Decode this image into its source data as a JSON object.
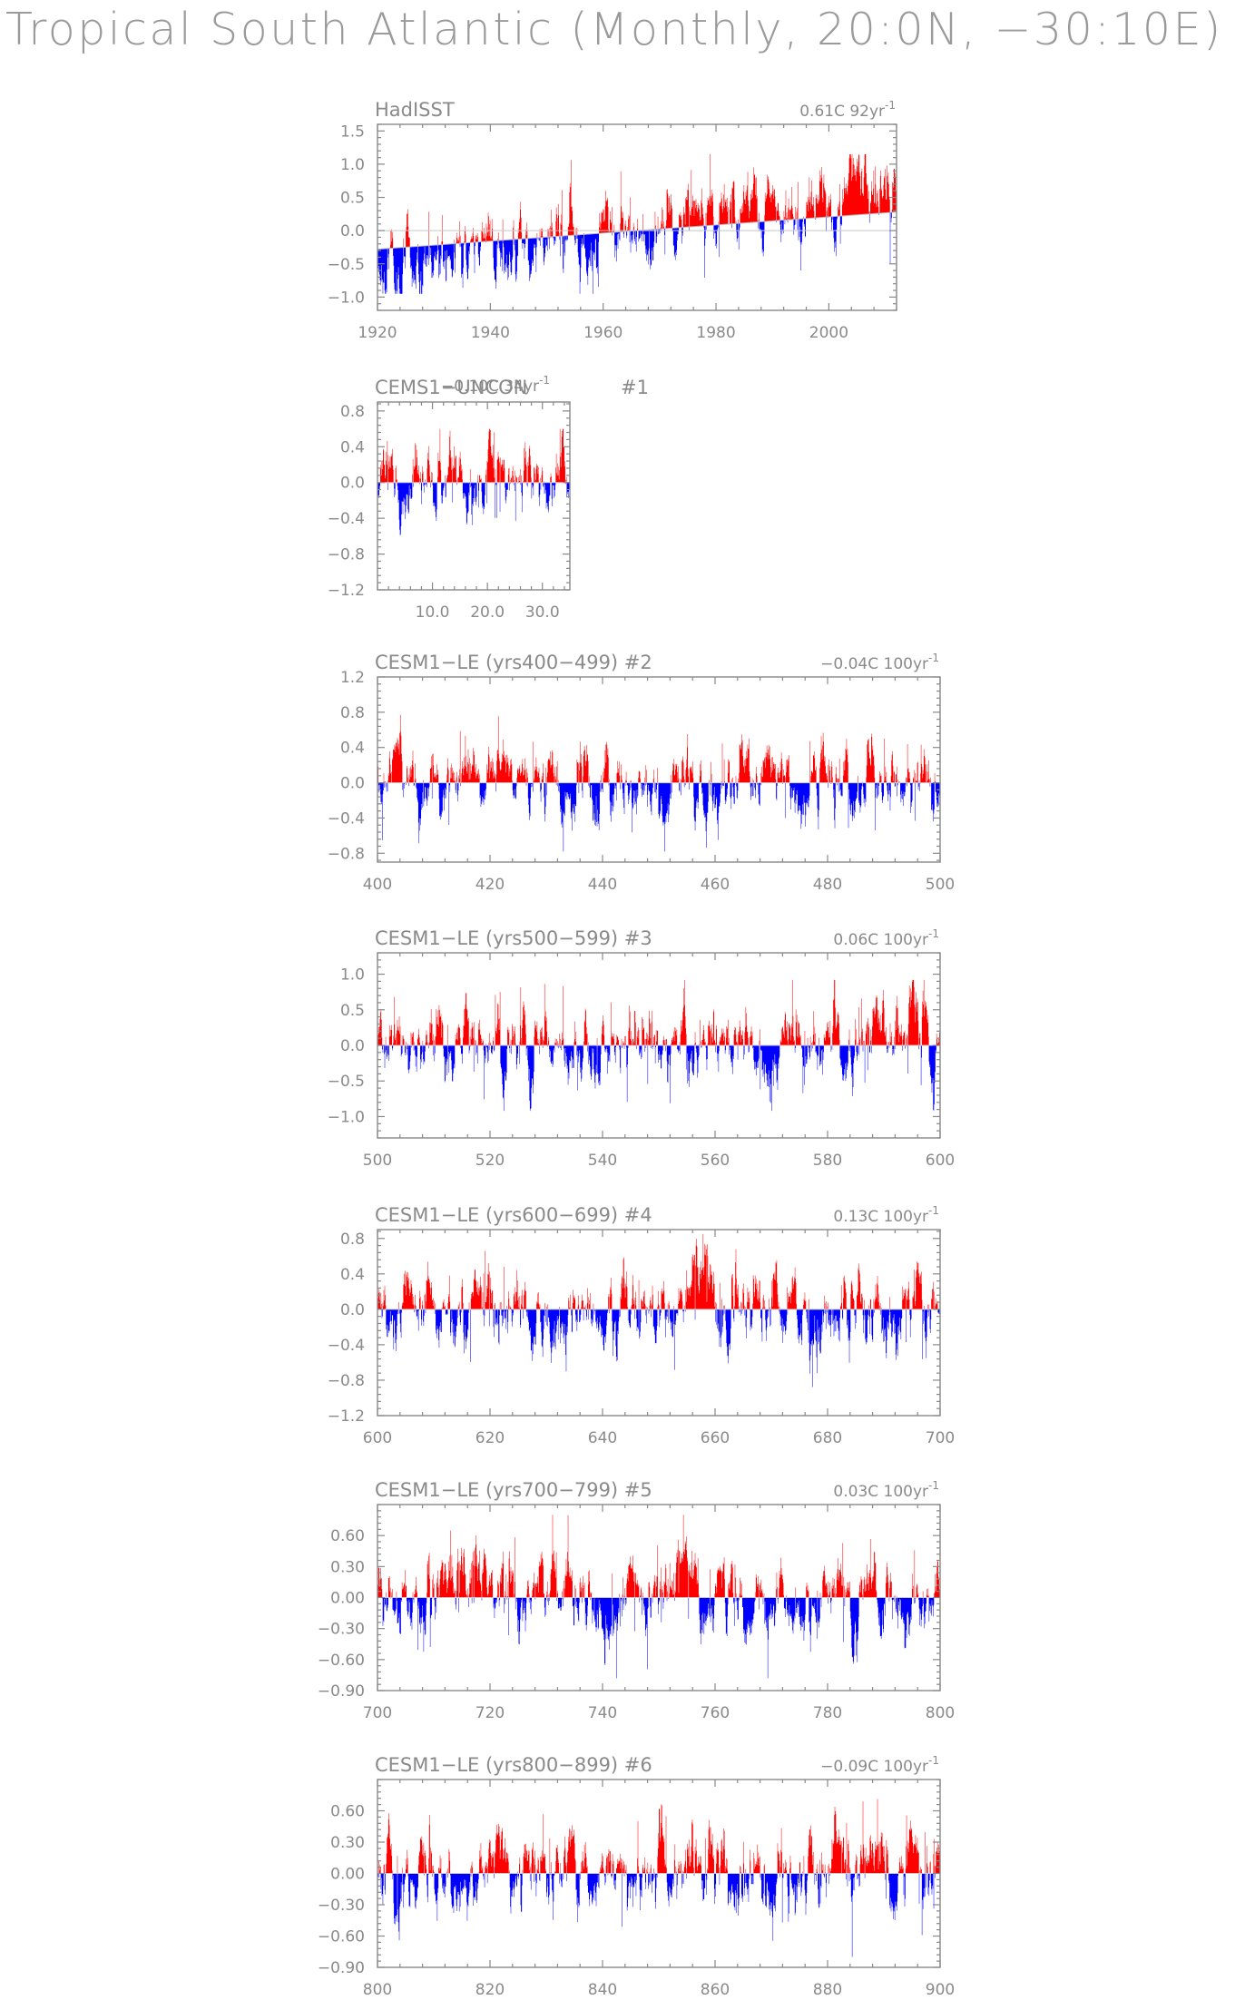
{
  "title": "Tropical South Atlantic (Monthly, 20:0N, −30:10E)",
  "colors": {
    "positive": "#ff0000",
    "negative": "#0000ff",
    "axis": "#888888",
    "text": "#8a8a8a"
  },
  "chart_data": [
    {
      "type": "bar",
      "title": "HadISST",
      "trend_text": "0.61C  92yr",
      "trend_unit_sup": "-1",
      "xlim": [
        1920,
        2012
      ],
      "ylim": [
        -1.2,
        1.6
      ],
      "xticks": [
        1920,
        1940,
        1960,
        1980,
        2000
      ],
      "yticks": [
        -1.0,
        -0.5,
        0.0,
        0.5,
        1.0,
        1.5
      ],
      "ytick_labels": [
        "−1.0",
        "−0.5",
        "0.0",
        "0.5",
        "1.0",
        "1.5"
      ],
      "xtick_labels": [
        "1920",
        "1940",
        "1960",
        "1980",
        "2000"
      ],
      "trend": {
        "start": -0.28,
        "end": 0.28
      },
      "series": [
        {
          "values": {
            "seed": 11,
            "amp": 0.3,
            "max": 1.15,
            "min": -0.95,
            "trend_start": -0.45,
            "trend_end": 0.55
          }
        }
      ]
    },
    {
      "type": "bar",
      "title": "CEMS1−UNCON",
      "trend_text": "−0.10C 34yr",
      "trend_unit_sup": "-1",
      "label_suffix": "#1",
      "xlim": [
        0,
        35
      ],
      "ylim": [
        -1.2,
        0.9
      ],
      "xticks": [
        10,
        20,
        30
      ],
      "xtick_labels": [
        "10.0",
        "20.0",
        "30.0"
      ],
      "yticks": [
        -1.2,
        -0.8,
        -0.4,
        0.0,
        0.4,
        0.8
      ],
      "ytick_labels": [
        "−1.2",
        "−0.8",
        "−0.4",
        "0.0",
        "0.4",
        "0.8"
      ],
      "series": [
        {
          "values": {
            "seed": 23,
            "amp": 0.22,
            "max": 0.6,
            "min": -1.0
          }
        }
      ]
    },
    {
      "type": "bar",
      "title": "CESM1−LE (yrs400−499)  #2",
      "trend_text": "−0.04C  100yr",
      "trend_unit_sup": "-1",
      "xlim": [
        400,
        500
      ],
      "ylim": [
        -0.9,
        1.2
      ],
      "xticks": [
        400,
        420,
        440,
        460,
        480,
        500
      ],
      "xtick_labels": [
        "400",
        "420",
        "440",
        "460",
        "480",
        "500"
      ],
      "yticks": [
        -0.8,
        -0.4,
        0.0,
        0.4,
        0.8,
        1.2
      ],
      "ytick_labels": [
        "−0.8",
        "−0.4",
        "0.0",
        "0.4",
        "0.8",
        "1.2"
      ],
      "series": [
        {
          "values": {
            "seed": 37,
            "amp": 0.22,
            "max": 0.92,
            "min": -0.78
          }
        }
      ]
    },
    {
      "type": "bar",
      "title": "CESM1−LE (yrs500−599)  #3",
      "trend_text": "0.06C  100yr",
      "trend_unit_sup": "-1",
      "xlim": [
        500,
        600
      ],
      "ylim": [
        -1.3,
        1.3
      ],
      "xticks": [
        500,
        520,
        540,
        560,
        580,
        600
      ],
      "xtick_labels": [
        "500",
        "520",
        "540",
        "560",
        "580",
        "600"
      ],
      "yticks": [
        -1.0,
        -0.5,
        0.0,
        0.5,
        1.0
      ],
      "ytick_labels": [
        "−1.0",
        "−0.5",
        "0.0",
        "0.5",
        "1.0"
      ],
      "series": [
        {
          "values": {
            "seed": 41,
            "amp": 0.28,
            "max": 0.92,
            "min": -0.92
          }
        }
      ]
    },
    {
      "type": "bar",
      "title": "CESM1−LE (yrs600−699)  #4",
      "trend_text": "0.13C  100yr",
      "trend_unit_sup": "-1",
      "xlim": [
        600,
        700
      ],
      "ylim": [
        -1.2,
        0.9
      ],
      "xticks": [
        600,
        620,
        640,
        660,
        680,
        700
      ],
      "xtick_labels": [
        "600",
        "620",
        "640",
        "660",
        "680",
        "700"
      ],
      "yticks": [
        -1.2,
        -0.8,
        -0.4,
        0.0,
        0.4,
        0.8
      ],
      "ytick_labels": [
        "−1.2",
        "−0.8",
        "−0.4",
        "0.0",
        "0.4",
        "0.8"
      ],
      "series": [
        {
          "values": {
            "seed": 53,
            "amp": 0.24,
            "max": 0.85,
            "min": -0.9
          }
        }
      ]
    },
    {
      "type": "bar",
      "title": "CESM1−LE (yrs700−799)  #5",
      "trend_text": "0.03C  100yr",
      "trend_unit_sup": "-1",
      "xlim": [
        700,
        800
      ],
      "ylim": [
        -0.9,
        0.9
      ],
      "xticks": [
        700,
        720,
        740,
        760,
        780,
        800
      ],
      "xtick_labels": [
        "700",
        "720",
        "740",
        "760",
        "780",
        "800"
      ],
      "yticks": [
        -0.9,
        -0.6,
        -0.3,
        0.0,
        0.3,
        0.6
      ],
      "ytick_labels": [
        "−0.90",
        "−0.60",
        "−0.30",
        "0.00",
        "0.30",
        "0.60"
      ],
      "series": [
        {
          "values": {
            "seed": 67,
            "amp": 0.2,
            "max": 0.8,
            "min": -0.78
          }
        }
      ]
    },
    {
      "type": "bar",
      "title": "CESM1−LE (yrs800−899)  #6",
      "trend_text": "−0.09C  100yr",
      "trend_unit_sup": "-1",
      "xlim": [
        800,
        900
      ],
      "ylim": [
        -0.9,
        0.9
      ],
      "xticks": [
        800,
        820,
        840,
        860,
        880,
        900
      ],
      "xtick_labels": [
        "800",
        "820",
        "840",
        "860",
        "880",
        "900"
      ],
      "yticks": [
        -0.9,
        -0.6,
        -0.3,
        0.0,
        0.3,
        0.6
      ],
      "ytick_labels": [
        "−0.90",
        "−0.60",
        "−0.30",
        "0.00",
        "0.30",
        "0.60"
      ],
      "series": [
        {
          "values": {
            "seed": 79,
            "amp": 0.2,
            "max": 0.72,
            "min": -0.8
          }
        }
      ]
    }
  ]
}
